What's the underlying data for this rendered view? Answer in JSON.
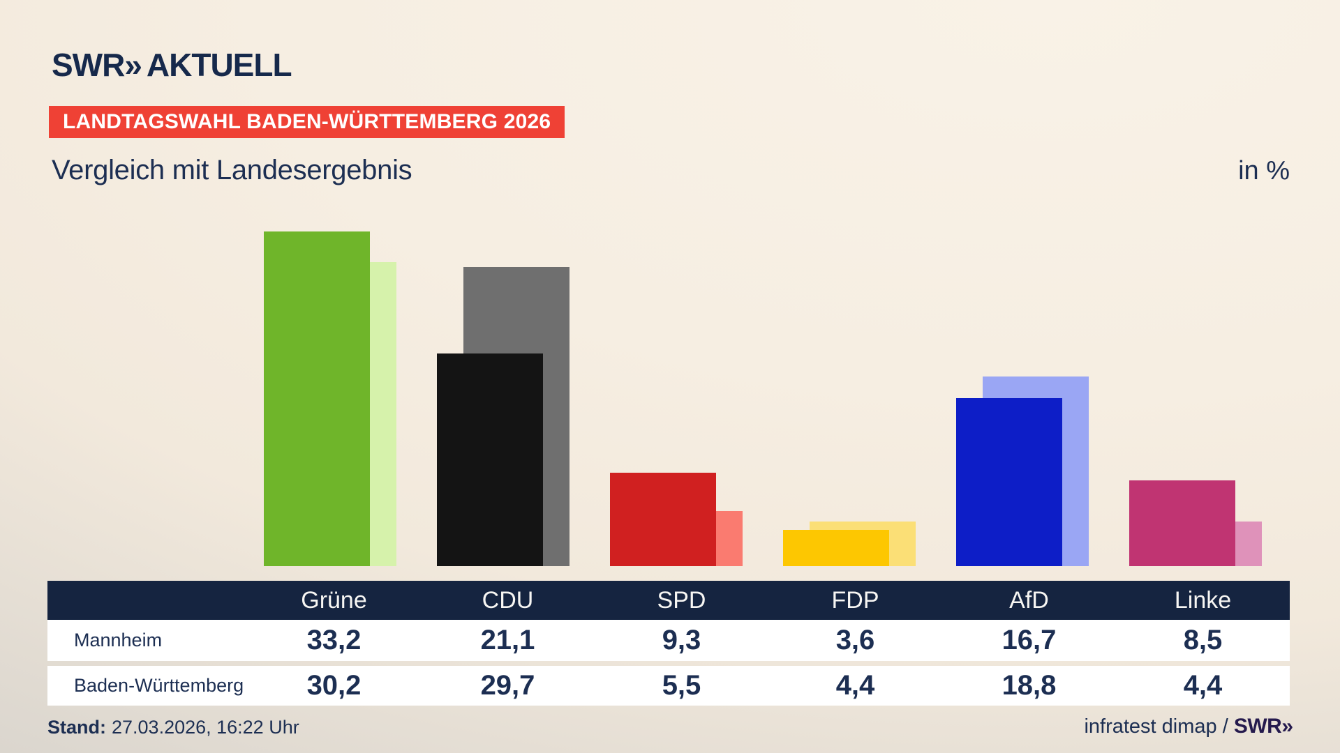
{
  "header": {
    "logo_brand": "SWR",
    "logo_chevrons": "»",
    "logo_product": "AKTUELL",
    "badge": "LANDTAGSWAHL BADEN-WÜRTTEMBERG 2026",
    "title": "Vergleich mit Landesergebnis",
    "unit": "in %"
  },
  "chart_data": {
    "type": "bar",
    "title": "Vergleich mit Landesergebnis",
    "unit": "in %",
    "categories": [
      "Grüne",
      "CDU",
      "SPD",
      "FDP",
      "AfD",
      "Linke"
    ],
    "series": [
      {
        "name": "Mannheim",
        "values": [
          33.2,
          21.1,
          9.3,
          3.6,
          16.7,
          8.5
        ],
        "colors": [
          "#6fb52a",
          "#141414",
          "#d02020",
          "#fdc701",
          "#0d1ec7",
          "#c03472"
        ]
      },
      {
        "name": "Baden-Württemberg",
        "values": [
          30.2,
          29.7,
          5.5,
          4.4,
          18.8,
          4.4
        ],
        "colors": [
          "#d6f2ab",
          "#6f6f6f",
          "#fa7b70",
          "#fbdf76",
          "#9aa6f4",
          "#df92ba"
        ]
      }
    ],
    "ylim": [
      0,
      34
    ],
    "grid": false,
    "legend": "none (series identified via table rows)",
    "value_format": "decimal comma (de-DE)"
  },
  "table": {
    "columns": [
      "Grüne",
      "CDU",
      "SPD",
      "FDP",
      "AfD",
      "Linke"
    ],
    "rows": [
      {
        "label": "Mannheim",
        "values": [
          "33,2",
          "21,1",
          "9,3",
          "3,6",
          "16,7",
          "8,5"
        ]
      },
      {
        "label": "Baden-Württemberg",
        "values": [
          "30,2",
          "29,7",
          "5,5",
          "4,4",
          "18,8",
          "4,4"
        ]
      }
    ]
  },
  "footer": {
    "stand_label": "Stand:",
    "stand_value": "27.03.2026, 16:22 Uhr",
    "source_text": "infratest dimap / ",
    "source_brand": "SWR",
    "source_brand_chevrons": "»"
  },
  "colors": {
    "navy_text": "#1c2e52",
    "logo_navy": "#16294b",
    "table_header_bg": "#152440",
    "badge_red": "#ef4135",
    "row_bg": "#ffffff",
    "brand_footer": "#251a4d",
    "background_cream": "#f6eee2",
    "background_gray_corner": "#b2afab"
  }
}
